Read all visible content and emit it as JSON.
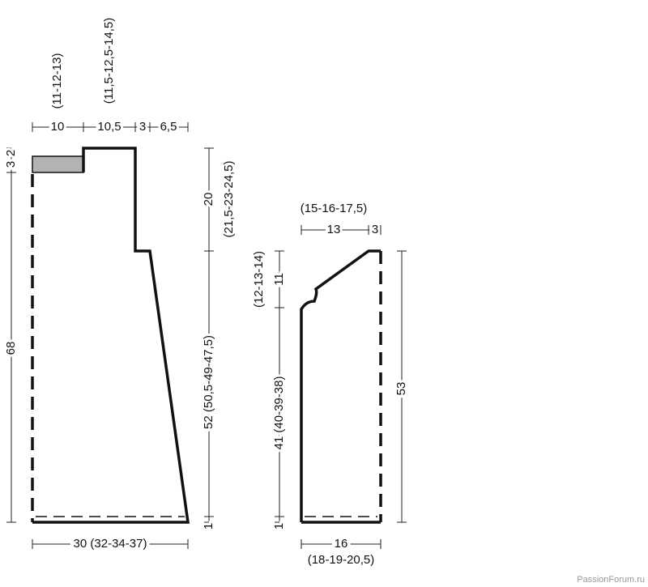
{
  "front": {
    "top_widths": [
      "10",
      "10,5",
      "3",
      "6,5"
    ],
    "top_widths_alt": [
      "(11-12-13)",
      "(11,5-12,5-14,5)"
    ],
    "left_heights": [
      "3",
      "2",
      "68"
    ],
    "right_heights": [
      "20",
      "(21,5-23-24,5)",
      "52 (50,5-49-47,5)",
      "1"
    ],
    "bottom_width": "30 (32-34-37)"
  },
  "sleeve": {
    "top_widths_alt": "(15-16-17,5)",
    "top_widths": [
      "13",
      "3"
    ],
    "left_heights": [
      "11",
      "(12-13-14)",
      "41 (40-39-38)",
      "1"
    ],
    "right_height": "53",
    "bottom_width": "16",
    "bottom_width_alt": "(18-19-20,5)"
  },
  "watermark": "PassionForum.ru"
}
